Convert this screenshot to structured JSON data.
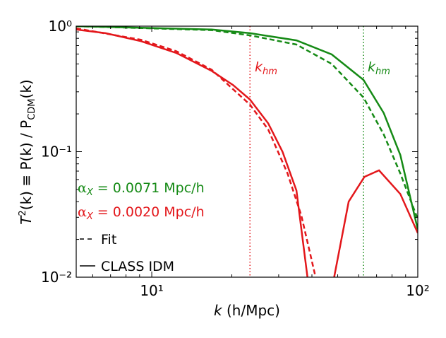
{
  "chart_data": {
    "type": "line",
    "log_x": true,
    "log_y": true,
    "xlim": [
      5.2,
      100
    ],
    "ylim": [
      0.01,
      1
    ],
    "xticks": [
      {
        "value": 10,
        "label": "10¹"
      },
      {
        "value": 100,
        "label": "10²"
      }
    ],
    "yticks": [
      {
        "value": 0.01,
        "label": "10⁻²"
      },
      {
        "value": 0.1,
        "label": "10⁻¹"
      },
      {
        "value": 1,
        "label": "10⁰"
      }
    ],
    "xminor": [
      6,
      7,
      8,
      9,
      20,
      30,
      40,
      50,
      60,
      70,
      80,
      90
    ],
    "yminor": [
      0.02,
      0.03,
      0.04,
      0.05,
      0.06,
      0.07,
      0.08,
      0.09,
      0.2,
      0.3,
      0.4,
      0.5,
      0.6,
      0.7,
      0.8,
      0.9
    ],
    "x_label": {
      "var": "k",
      "unit": " (h/Mpc)"
    },
    "y_label": {
      "a": "T",
      "sup": "2",
      "b": "(k) ≡ P(k) / P",
      "sub": "CDM",
      "c": "(k)"
    },
    "series": [
      {
        "color": "#158a15",
        "style": "solid",
        "x": [
          5.2,
          16.8,
          23.4,
          35,
          47.5,
          62.5,
          74.5,
          86,
          100
        ],
        "values": [
          1.0,
          0.94,
          0.88,
          0.77,
          0.595,
          0.373,
          0.203,
          0.094,
          0.024
        ]
      },
      {
        "color": "#158a15",
        "style": "dashed",
        "x": [
          5.2,
          16.8,
          23.4,
          35,
          47.5,
          62.5,
          74.5,
          86,
          100
        ],
        "values": [
          1.0,
          0.93,
          0.845,
          0.714,
          0.5,
          0.27,
          0.137,
          0.067,
          0.029
        ]
      },
      {
        "color": "#e3171b",
        "style": "solid",
        "x": [
          5.2,
          6.7,
          9.1,
          12.4,
          16.8,
          20.2,
          23.4,
          27.4,
          31,
          35,
          38.5,
          null,
          48.5,
          55,
          63,
          71.5,
          86,
          100
        ],
        "values": [
          0.94,
          0.88,
          0.76,
          0.61,
          0.44,
          0.34,
          0.26,
          0.168,
          0.1,
          0.049,
          0.01,
          null,
          0.01,
          0.04,
          0.063,
          0.071,
          0.046,
          0.0225
        ]
      },
      {
        "color": "#e3171b",
        "style": "dashed",
        "x": [
          5.2,
          9.1,
          12.4,
          16.8,
          23.4,
          27.4,
          32.4,
          36.5,
          41.3
        ],
        "values": [
          0.96,
          0.78,
          0.63,
          0.45,
          0.237,
          0.15,
          0.067,
          0.031,
          0.01
        ]
      }
    ],
    "vlines": [
      {
        "x": 23.4,
        "color": "#e3171b"
      },
      {
        "x": 62.5,
        "color": "#158a15"
      }
    ],
    "annotations": [
      {
        "var": "k",
        "sub": "hm",
        "color": "#e3171b"
      },
      {
        "var": "k",
        "sub": "hm",
        "color": "#158a15"
      },
      {
        "sym": "α",
        "sub": "X",
        "text": " = 0.0071 Mpc/h",
        "color": "#158a15"
      },
      {
        "sym": "α",
        "sub": "X",
        "text": " = 0.0020 Mpc/h",
        "color": "#e3171b"
      }
    ],
    "legend_loc": "lower left",
    "legend": [
      {
        "label": "Fit",
        "style": "dashed"
      },
      {
        "label": "CLASS IDM",
        "style": "solid"
      }
    ]
  }
}
